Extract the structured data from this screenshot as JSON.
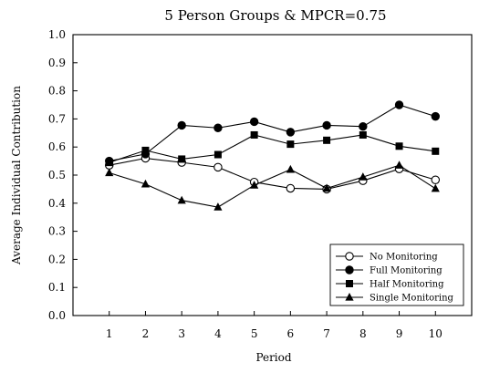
{
  "chart_data": {
    "type": "line",
    "title": "5 Person Groups & MPCR=0.75",
    "xlabel": "Period",
    "ylabel": "Average Individual Contribution",
    "x": [
      1,
      2,
      3,
      4,
      5,
      6,
      7,
      8,
      9,
      10
    ],
    "xlim": [
      0,
      11
    ],
    "ylim": [
      0.0,
      1.0
    ],
    "yticks": [
      "0.0",
      "0.1",
      "0.2",
      "0.3",
      "0.4",
      "0.5",
      "0.6",
      "0.7",
      "0.8",
      "0.9",
      "1.0"
    ],
    "xticks": [
      "1",
      "2",
      "3",
      "4",
      "5",
      "6",
      "7",
      "8",
      "9",
      "10"
    ],
    "grid": false,
    "legend_position": "bottom-right",
    "series": [
      {
        "name": "No Monitoring",
        "marker": "circle-open",
        "values": [
          0.535,
          0.56,
          0.545,
          0.528,
          0.475,
          0.453,
          0.45,
          0.48,
          0.522,
          0.483
        ]
      },
      {
        "name": "Full Monitoring",
        "marker": "circle-filled",
        "values": [
          0.55,
          0.575,
          0.677,
          0.668,
          0.69,
          0.653,
          0.677,
          0.673,
          0.75,
          0.709
        ]
      },
      {
        "name": "Half Monitoring",
        "marker": "square-filled",
        "values": [
          0.545,
          0.588,
          0.557,
          0.573,
          0.643,
          0.61,
          0.624,
          0.643,
          0.603,
          0.585
        ]
      },
      {
        "name": "Single Monitoring",
        "marker": "triangle-filled",
        "values": [
          0.508,
          0.468,
          0.41,
          0.386,
          0.464,
          0.52,
          0.453,
          0.493,
          0.535,
          0.452
        ]
      }
    ]
  }
}
